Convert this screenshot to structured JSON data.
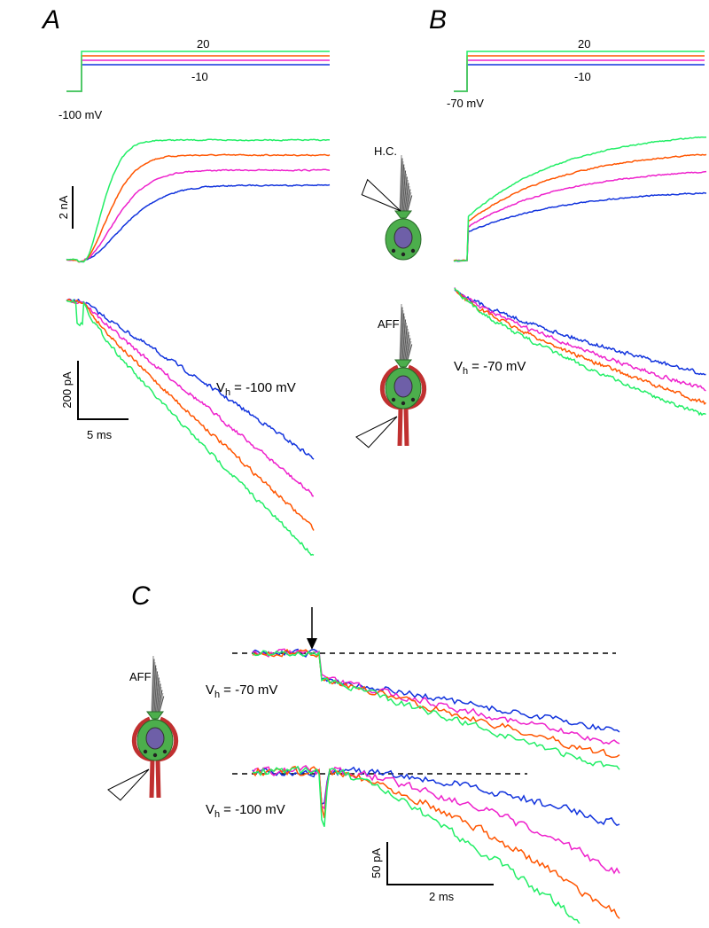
{
  "panel_a": {
    "letter": "A",
    "step_top": "20",
    "step_bottom": "-10",
    "holding": "-100 mV",
    "scale_current": "2 nA",
    "scale_small": "200 pA",
    "scale_time": "5 ms",
    "vh": {
      "v": "V",
      "sub": "h",
      "rest": "= -100 mV"
    }
  },
  "panel_b": {
    "letter": "B",
    "step_top": "20",
    "step_bottom": "-10",
    "holding": "-70 mV",
    "cell_hc": "H.C.",
    "cell_aff": "AFF",
    "vh": {
      "v": "V",
      "sub": "h",
      "rest": "= -70 mV"
    }
  },
  "panel_c": {
    "letter": "C",
    "cell_aff": "AFF",
    "vh_top": {
      "v": "V",
      "sub": "h",
      "rest": "= -70 mV"
    },
    "vh_bottom": {
      "v": "V",
      "sub": "h",
      "rest": "= -100 mV"
    },
    "scale_current": "50 pA",
    "scale_time": "2 ms"
  }
}
